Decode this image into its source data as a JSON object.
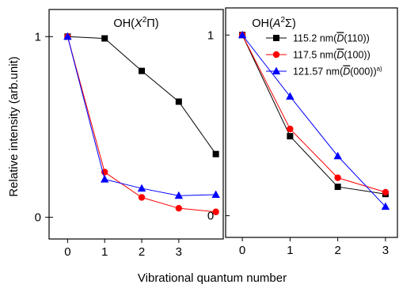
{
  "chart_data": [
    {
      "type": "line",
      "panel_title": {
        "base": "OH(",
        "italic": "X",
        "sup": "2",
        "tail": "Π)"
      },
      "xlabel": "Vibrational quantum number",
      "ylabel": "Relative intensity (arb.unit)",
      "x": [
        0,
        1,
        2,
        3,
        4
      ],
      "xticks": [
        "0",
        "1",
        "2",
        "3"
      ],
      "yticks": [
        "0",
        "1"
      ],
      "xlim": [
        -0.5,
        4.2
      ],
      "ylim": [
        -0.12,
        1.15
      ],
      "series": [
        {
          "color": "#000000",
          "marker": "square",
          "values": [
            1.0,
            0.99,
            0.81,
            0.64,
            0.35
          ]
        },
        {
          "color": "#ff0000",
          "marker": "circle",
          "values": [
            1.0,
            0.25,
            0.11,
            0.05,
            0.03
          ]
        },
        {
          "color": "#0000ff",
          "marker": "triangle",
          "values": [
            1.0,
            0.21,
            0.16,
            0.12,
            0.125
          ]
        }
      ]
    },
    {
      "type": "line",
      "panel_title": {
        "base": "OH(",
        "italic": "A",
        "sup": "2",
        "tail": "Σ)"
      },
      "x": [
        0,
        1,
        2,
        3
      ],
      "xticks": [
        "0",
        "1",
        "2",
        "3"
      ],
      "yticks": [
        "0",
        "1"
      ],
      "xlim": [
        -0.35,
        3.25
      ],
      "ylim": [
        -0.12,
        1.15
      ],
      "legend_position": "top-right",
      "series": [
        {
          "name": "115.2 nm(D̄(110))",
          "name_parts": [
            "115.2 nm(",
            "D",
            "(110))",
            ""
          ],
          "color": "#000000",
          "marker": "square",
          "values": [
            1.0,
            0.44,
            0.16,
            0.12
          ]
        },
        {
          "name": "117.5 nm(D̄(100))",
          "name_parts": [
            "117.5 nm(",
            "D",
            "(100))",
            ""
          ],
          "color": "#ff0000",
          "marker": "circle",
          "values": [
            1.0,
            0.48,
            0.21,
            0.13
          ]
        },
        {
          "name": "121.57 nm(D̄(000))a)",
          "name_parts": [
            "121.57 nm(",
            "D",
            "(000))",
            "a)"
          ],
          "color": "#0000ff",
          "marker": "triangle",
          "values": [
            1.0,
            0.66,
            0.33,
            0.05
          ]
        }
      ]
    }
  ]
}
